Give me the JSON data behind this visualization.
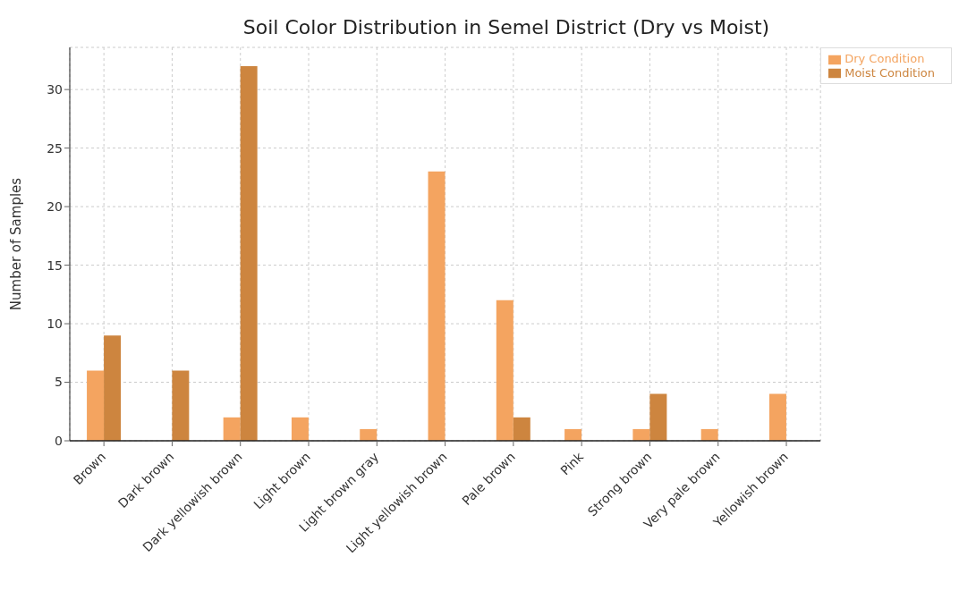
{
  "chart_data": {
    "type": "bar",
    "title": "Soil Color Distribution in Semel District (Dry vs Moist)",
    "ylabel": "Number of Samples",
    "categories": [
      "Brown",
      "Dark brown",
      "Dark yellowish brown",
      "Light brown",
      "Light brown gray",
      "Light yellowish brown",
      "Pale brown",
      "Pink",
      "Strong brown",
      "Very pale brown",
      "Yellowish brown"
    ],
    "series": [
      {
        "name": "Dry Condition",
        "color": "#f4a460",
        "values": [
          6,
          0,
          2,
          2,
          1,
          23,
          12,
          1,
          1,
          1,
          4
        ]
      },
      {
        "name": "Moist Condition",
        "color": "#cd853f",
        "values": [
          9,
          6,
          32,
          0,
          0,
          0,
          2,
          0,
          4,
          0,
          0
        ]
      }
    ],
    "ylim": [
      0,
      33.6
    ],
    "yticks": [
      0,
      5,
      10,
      15,
      20,
      25,
      30
    ],
    "grid": true,
    "legend": "top right"
  }
}
